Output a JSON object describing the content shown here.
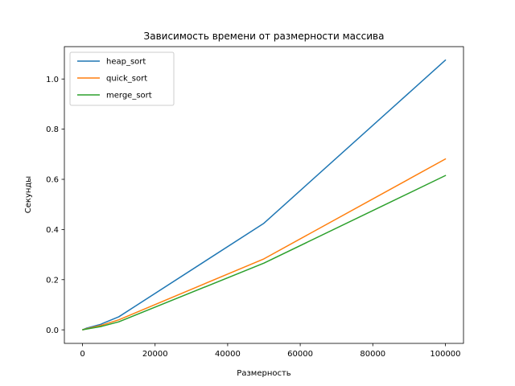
{
  "chart_data": {
    "type": "line",
    "title": "Зависимость времени от размерности массива",
    "xlabel": "Размерность",
    "ylabel": "Секунды",
    "x": [
      100,
      1000,
      5000,
      10000,
      50000,
      100000
    ],
    "series": [
      {
        "name": "heap_sort",
        "color": "#1f77b4",
        "values": [
          0.0005,
          0.006,
          0.022,
          0.052,
          0.425,
          1.075
        ]
      },
      {
        "name": "quick_sort",
        "color": "#ff7f0e",
        "values": [
          0.0004,
          0.004,
          0.017,
          0.04,
          0.283,
          0.681
        ]
      },
      {
        "name": "merge_sort",
        "color": "#2ca02c",
        "values": [
          0.0004,
          0.003,
          0.013,
          0.032,
          0.266,
          0.615
        ]
      }
    ],
    "xlim": [
      -5000,
      105000
    ],
    "ylim": [
      -0.054,
      1.129
    ],
    "xticks": [
      0,
      20000,
      40000,
      60000,
      80000,
      100000
    ],
    "yticks": [
      0.0,
      0.2,
      0.4,
      0.6,
      0.8,
      1.0
    ],
    "xtick_labels": [
      "0",
      "20000",
      "40000",
      "60000",
      "80000",
      "100000"
    ],
    "ytick_labels": [
      "0.0",
      "0.2",
      "0.4",
      "0.6",
      "0.8",
      "1.0"
    ],
    "grid": false,
    "legend_position": "top-left"
  }
}
